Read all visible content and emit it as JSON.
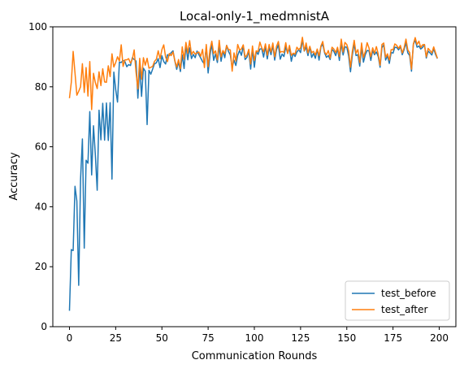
{
  "chart_data": {
    "type": "line",
    "title": "Local-only-1_medmnistA",
    "xlabel": "Communication Rounds",
    "ylabel": "Accuracy",
    "xlim": [
      -9,
      209
    ],
    "ylim": [
      0,
      100
    ],
    "xticks": [
      0,
      25,
      50,
      75,
      100,
      125,
      150,
      175,
      200
    ],
    "yticks": [
      0,
      20,
      40,
      60,
      80,
      100
    ],
    "legend_position": "lower-right",
    "grid": false,
    "series": [
      {
        "name": "test_before",
        "color": "#1f77b4",
        "x": [
          0,
          1,
          2,
          3,
          4,
          5,
          6,
          7,
          8,
          9,
          10,
          11,
          12,
          13,
          14,
          15,
          16,
          17,
          18,
          19,
          20,
          21,
          22,
          23,
          24,
          25,
          26,
          27,
          28,
          29,
          30,
          31,
          32,
          33,
          34,
          35,
          36,
          37,
          38,
          39,
          40,
          41,
          42,
          43,
          44,
          45,
          46,
          47,
          48,
          49,
          50,
          51,
          52,
          53,
          54,
          55,
          56,
          57,
          58,
          59,
          60,
          61,
          62,
          63,
          64,
          65,
          66,
          67,
          68,
          69,
          70,
          71,
          72,
          73,
          74,
          75,
          76,
          77,
          78,
          79,
          80,
          81,
          82,
          83,
          84,
          85,
          86,
          87,
          88,
          89,
          90,
          91,
          92,
          93,
          94,
          95,
          96,
          97,
          98,
          99,
          100,
          101,
          102,
          103,
          104,
          105,
          106,
          107,
          108,
          109,
          110,
          111,
          112,
          113,
          114,
          115,
          116,
          117,
          118,
          119,
          120,
          121,
          122,
          123,
          124,
          125,
          126,
          127,
          128,
          129,
          130,
          131,
          132,
          133,
          134,
          135,
          136,
          137,
          138,
          139,
          140,
          141,
          142,
          143,
          144,
          145,
          146,
          147,
          148,
          149,
          150,
          151,
          152,
          153,
          154,
          155,
          156,
          157,
          158,
          159,
          160,
          161,
          162,
          163,
          164,
          165,
          166,
          167,
          168,
          169,
          170,
          171,
          172,
          173,
          174,
          175,
          176,
          177,
          178,
          179,
          180,
          181,
          182,
          183,
          184,
          185,
          186,
          187,
          188,
          189,
          190,
          191,
          192,
          193,
          194,
          195,
          196,
          197,
          198,
          199
        ],
        "y": [
          5.3,
          25.7,
          25.4,
          46.8,
          41.9,
          13.8,
          49.1,
          62.6,
          26.2,
          55.5,
          54.5,
          71.7,
          50.6,
          67.0,
          57.3,
          45.5,
          72.2,
          62.3,
          74.5,
          62.2,
          74.6,
          62.1,
          74.7,
          49.2,
          84.9,
          79.1,
          74.9,
          88.2,
          88.1,
          88.8,
          88.4,
          86.7,
          87.4,
          87.1,
          89.7,
          89.1,
          88.6,
          76.2,
          86.8,
          76.8,
          86.2,
          85.2,
          67.4,
          85.5,
          84.2,
          85.9,
          87.7,
          88.0,
          89.4,
          86.4,
          90.3,
          88.4,
          87.6,
          90.7,
          90.4,
          91.4,
          92.0,
          88.6,
          85.8,
          88.3,
          85.1,
          90.6,
          86.1,
          94.0,
          89.0,
          93.0,
          89.4,
          90.8,
          89.7,
          91.9,
          90.7,
          89.6,
          88.4,
          87.6,
          93.3,
          84.6,
          90.4,
          94.3,
          88.8,
          91.0,
          88.1,
          93.5,
          88.5,
          92.0,
          89.7,
          93.8,
          91.8,
          90.6,
          86.5,
          88.9,
          87.1,
          90.5,
          92.1,
          90.5,
          93.6,
          89.1,
          89.8,
          91.9,
          85.9,
          92.5,
          86.5,
          91.8,
          90.8,
          92.6,
          92.7,
          89.9,
          93.5,
          89.3,
          93.1,
          90.7,
          93.8,
          88.9,
          92.4,
          94.0,
          89.2,
          90.9,
          90.1,
          93.3,
          91.2,
          92.9,
          88.5,
          91.2,
          90.1,
          91.6,
          92.4,
          91.4,
          95.6,
          91.9,
          93.2,
          90.4,
          93.3,
          89.8,
          91.1,
          89.5,
          92.4,
          88.9,
          93.3,
          94.2,
          91.3,
          89.8,
          90.4,
          89.1,
          92.5,
          91.8,
          90.4,
          92.7,
          88.8,
          94.5,
          90.6,
          93.3,
          93.2,
          90.3,
          85.0,
          90.5,
          94.3,
          90.4,
          90.7,
          86.9,
          93.0,
          88.2,
          90.7,
          92.1,
          92.0,
          88.8,
          92.1,
          90.7,
          91.6,
          90.1,
          86.5,
          93.0,
          94.0,
          88.9,
          90.3,
          87.8,
          91.5,
          91.2,
          93.2,
          93.1,
          92.3,
          93.4,
          90.7,
          92.4,
          94.7,
          91.3,
          90.4,
          85.2,
          94.1,
          95.6,
          93.2,
          93.6,
          92.6,
          93.1,
          94.1,
          89.6,
          91.9,
          91.3,
          90.6,
          92.7,
          90.8,
          89.4
        ]
      },
      {
        "name": "test_after",
        "color": "#ff7f0e",
        "x": [
          0,
          1,
          2,
          3,
          4,
          5,
          6,
          7,
          8,
          9,
          10,
          11,
          12,
          13,
          14,
          15,
          16,
          17,
          18,
          19,
          20,
          21,
          22,
          23,
          24,
          25,
          26,
          27,
          28,
          29,
          30,
          31,
          32,
          33,
          34,
          35,
          36,
          37,
          38,
          39,
          40,
          41,
          42,
          43,
          44,
          45,
          46,
          47,
          48,
          49,
          50,
          51,
          52,
          53,
          54,
          55,
          56,
          57,
          58,
          59,
          60,
          61,
          62,
          63,
          64,
          65,
          66,
          67,
          68,
          69,
          70,
          71,
          72,
          73,
          74,
          75,
          76,
          77,
          78,
          79,
          80,
          81,
          82,
          83,
          84,
          85,
          86,
          87,
          88,
          89,
          90,
          91,
          92,
          93,
          94,
          95,
          96,
          97,
          98,
          99,
          100,
          101,
          102,
          103,
          104,
          105,
          106,
          107,
          108,
          109,
          110,
          111,
          112,
          113,
          114,
          115,
          116,
          117,
          118,
          119,
          120,
          121,
          122,
          123,
          124,
          125,
          126,
          127,
          128,
          129,
          130,
          131,
          132,
          133,
          134,
          135,
          136,
          137,
          138,
          139,
          140,
          141,
          142,
          143,
          144,
          145,
          146,
          147,
          148,
          149,
          150,
          151,
          152,
          153,
          154,
          155,
          156,
          157,
          158,
          159,
          160,
          161,
          162,
          163,
          164,
          165,
          166,
          167,
          168,
          169,
          170,
          171,
          172,
          173,
          174,
          175,
          176,
          177,
          178,
          179,
          180,
          181,
          182,
          183,
          184,
          185,
          186,
          187,
          188,
          189,
          190,
          191,
          192,
          193,
          194,
          195,
          196,
          197,
          198,
          199
        ],
        "y": [
          76.2,
          81.5,
          91.8,
          84.6,
          77.2,
          78.5,
          80.0,
          87.7,
          78.1,
          86.4,
          76.9,
          88.4,
          72.4,
          84.5,
          81.4,
          79.4,
          85.0,
          80.4,
          86.0,
          81.6,
          81.5,
          87.0,
          83.4,
          91.0,
          86.6,
          88.1,
          90.0,
          88.6,
          94.0,
          86.8,
          89.0,
          89.0,
          89.4,
          87.9,
          89.1,
          92.3,
          84.9,
          79.3,
          89.5,
          82.5,
          89.7,
          87.2,
          89.5,
          86.2,
          86.5,
          86.8,
          88.5,
          89.2,
          92.0,
          89.3,
          92.4,
          94.0,
          89.9,
          88.4,
          91.1,
          90.4,
          91.6,
          88.7,
          86.6,
          89.1,
          86.0,
          93.3,
          89.2,
          94.8,
          91.2,
          95.4,
          90.8,
          91.8,
          90.9,
          91.3,
          91.6,
          90.2,
          92.5,
          86.4,
          94.1,
          86.7,
          92.4,
          95.2,
          91.1,
          92.0,
          89.0,
          95.5,
          90.0,
          92.1,
          91.0,
          93.8,
          92.4,
          92.3,
          85.2,
          91.3,
          88.6,
          94.1,
          92.3,
          92.6,
          94.0,
          89.9,
          90.6,
          92.5,
          87.6,
          93.6,
          88.8,
          92.0,
          91.7,
          94.9,
          93.0,
          91.7,
          94.3,
          90.5,
          94.1,
          91.6,
          94.6,
          90.0,
          93.5,
          95.1,
          91.5,
          91.8,
          91.5,
          94.7,
          91.1,
          93.8,
          90.5,
          91.2,
          90.9,
          93.2,
          92.4,
          93.0,
          96.5,
          92.0,
          94.6,
          91.3,
          93.5,
          91.4,
          91.8,
          90.6,
          92.6,
          90.3,
          93.6,
          95.1,
          91.6,
          90.7,
          92.1,
          89.6,
          93.2,
          92.6,
          91.4,
          93.2,
          90.1,
          95.9,
          91.6,
          94.8,
          94.1,
          92.0,
          86.5,
          91.8,
          95.5,
          91.2,
          92.4,
          88.1,
          94.6,
          89.8,
          91.7,
          94.7,
          93.0,
          90.0,
          93.0,
          91.2,
          93.4,
          90.9,
          87.2,
          94.1,
          94.6,
          89.8,
          91.0,
          88.9,
          92.4,
          92.3,
          94.3,
          93.8,
          92.8,
          93.8,
          91.3,
          93.0,
          95.9,
          92.3,
          91.4,
          85.9,
          94.3,
          96.4,
          94.1,
          95.2,
          93.1,
          94.0,
          94.1,
          90.0,
          92.8,
          92.1,
          91.3,
          93.3,
          91.4,
          89.5
        ]
      }
    ]
  }
}
